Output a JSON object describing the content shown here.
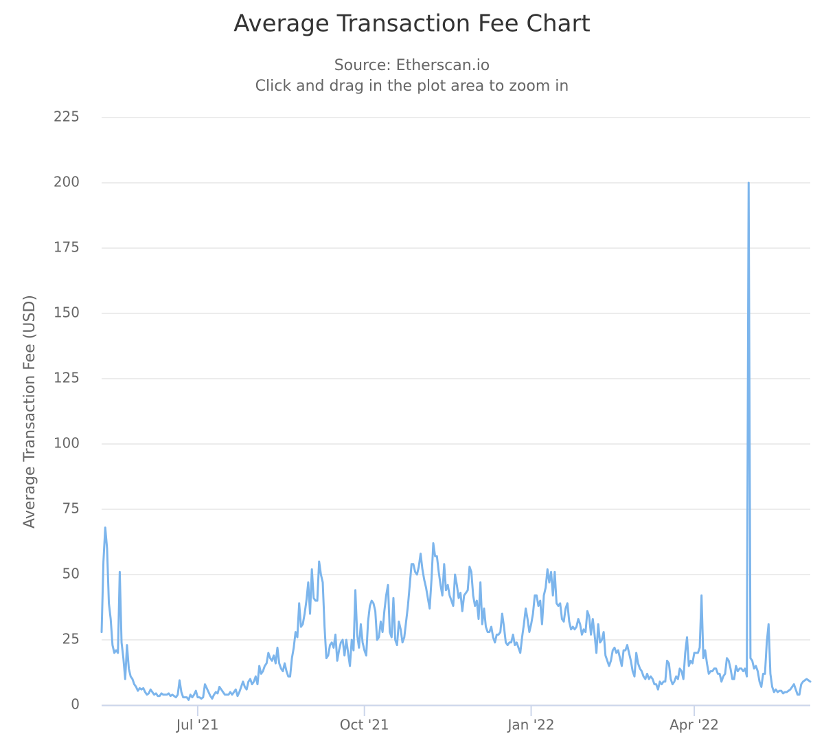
{
  "chart_data": {
    "type": "line",
    "title": "Average Transaction Fee Chart",
    "subtitle": "Source: Etherscan.io",
    "note": "Click and drag in the plot area to zoom in",
    "y_label": "Average Transaction Fee (USD)",
    "color": "#7cb5ec",
    "grid": true,
    "ylim": [
      0,
      225
    ],
    "yticks": [
      0,
      25,
      50,
      75,
      100,
      125,
      150,
      175,
      200,
      225
    ],
    "xlim": [
      0,
      391
    ],
    "xticks": [
      {
        "value": 53,
        "label": "Jul '21"
      },
      {
        "value": 145,
        "label": "Oct '21"
      },
      {
        "value": 237,
        "label": "Jan '22"
      },
      {
        "value": 327,
        "label": "Apr '22"
      }
    ],
    "values": [
      28,
      55,
      68,
      60,
      39,
      33,
      23,
      20,
      21,
      20,
      51,
      24,
      18,
      10,
      23,
      14,
      11,
      10,
      8,
      7,
      5.5,
      6.5,
      6,
      6.5,
      5,
      4,
      4.5,
      6,
      5,
      4,
      4.5,
      3.5,
      3.5,
      4.5,
      4,
      4,
      4,
      4.5,
      3.5,
      4,
      3.5,
      3,
      4,
      9.5,
      5,
      3,
      3,
      3,
      2,
      4,
      3,
      4,
      5.5,
      3,
      3,
      2.5,
      3,
      8,
      6.5,
      5,
      3.5,
      2.5,
      4,
      5,
      4.5,
      7,
      6,
      5,
      4,
      4,
      4,
      5,
      4,
      5,
      6,
      3.5,
      5,
      7,
      9,
      7,
      6,
      9,
      10,
      8,
      9,
      11,
      8,
      15,
      12,
      13,
      15,
      16,
      20,
      18,
      17,
      19,
      16,
      22,
      16,
      14,
      13,
      16,
      13,
      11,
      11,
      18,
      22,
      28,
      26,
      39,
      30,
      31,
      35,
      40,
      47,
      35,
      52,
      41,
      40,
      40,
      55,
      50,
      47,
      30,
      18,
      19,
      23,
      24,
      22,
      27,
      17,
      21,
      24,
      25,
      19,
      25,
      20,
      15,
      25,
      21,
      44,
      27,
      22,
      31,
      24,
      21,
      19,
      32,
      38,
      40,
      39,
      36,
      25,
      26,
      32,
      28,
      36,
      42,
      46,
      28,
      26,
      41,
      25,
      23,
      32,
      29,
      24,
      26,
      32,
      38,
      46,
      54,
      54,
      51,
      50,
      53,
      58,
      52,
      48,
      45,
      41,
      37,
      48,
      62,
      57,
      57,
      51,
      46,
      42,
      54,
      44,
      46,
      42,
      40,
      38,
      50,
      46,
      41,
      43,
      36,
      42,
      43,
      44,
      53,
      51,
      42,
      38,
      40,
      33,
      47,
      31,
      37,
      30,
      28,
      28,
      30,
      26,
      24,
      27,
      27,
      28,
      35,
      30,
      24,
      23,
      24,
      24,
      27,
      23,
      24,
      22,
      20,
      26,
      31,
      37,
      33,
      28,
      31,
      35,
      42,
      42,
      38,
      40,
      31,
      42,
      45,
      52,
      47,
      51,
      42,
      51,
      39,
      38,
      39,
      33,
      32,
      37,
      39,
      32,
      29,
      30,
      29,
      30,
      33,
      31,
      27,
      29,
      28,
      36,
      34,
      27,
      33,
      27,
      20,
      31,
      24,
      25,
      28,
      19,
      17,
      15,
      17,
      21,
      22,
      20,
      21,
      18,
      15,
      21,
      21,
      23,
      20,
      17,
      13,
      11,
      20,
      16,
      14,
      13,
      11,
      10,
      12,
      10,
      11,
      10,
      8,
      8,
      6,
      9,
      8,
      9,
      9,
      17,
      16,
      10,
      8,
      9,
      11,
      10,
      14,
      13,
      10,
      20,
      26,
      15,
      17,
      16,
      20,
      20,
      20,
      22,
      42,
      18,
      21,
      16,
      12,
      13,
      13,
      14,
      14,
      12,
      12,
      9,
      11,
      12,
      18,
      17,
      14,
      10,
      10,
      15,
      13,
      14,
      14,
      13,
      14,
      11,
      200,
      18,
      17,
      14,
      15,
      13,
      9,
      7,
      12,
      12,
      24,
      31,
      12,
      7,
      5,
      6,
      5,
      5.5,
      5.5,
      4.5,
      5,
      5,
      5.5,
      6,
      7,
      8,
      6,
      4,
      4,
      8,
      9,
      9.5,
      10,
      9.5,
      9
    ]
  }
}
